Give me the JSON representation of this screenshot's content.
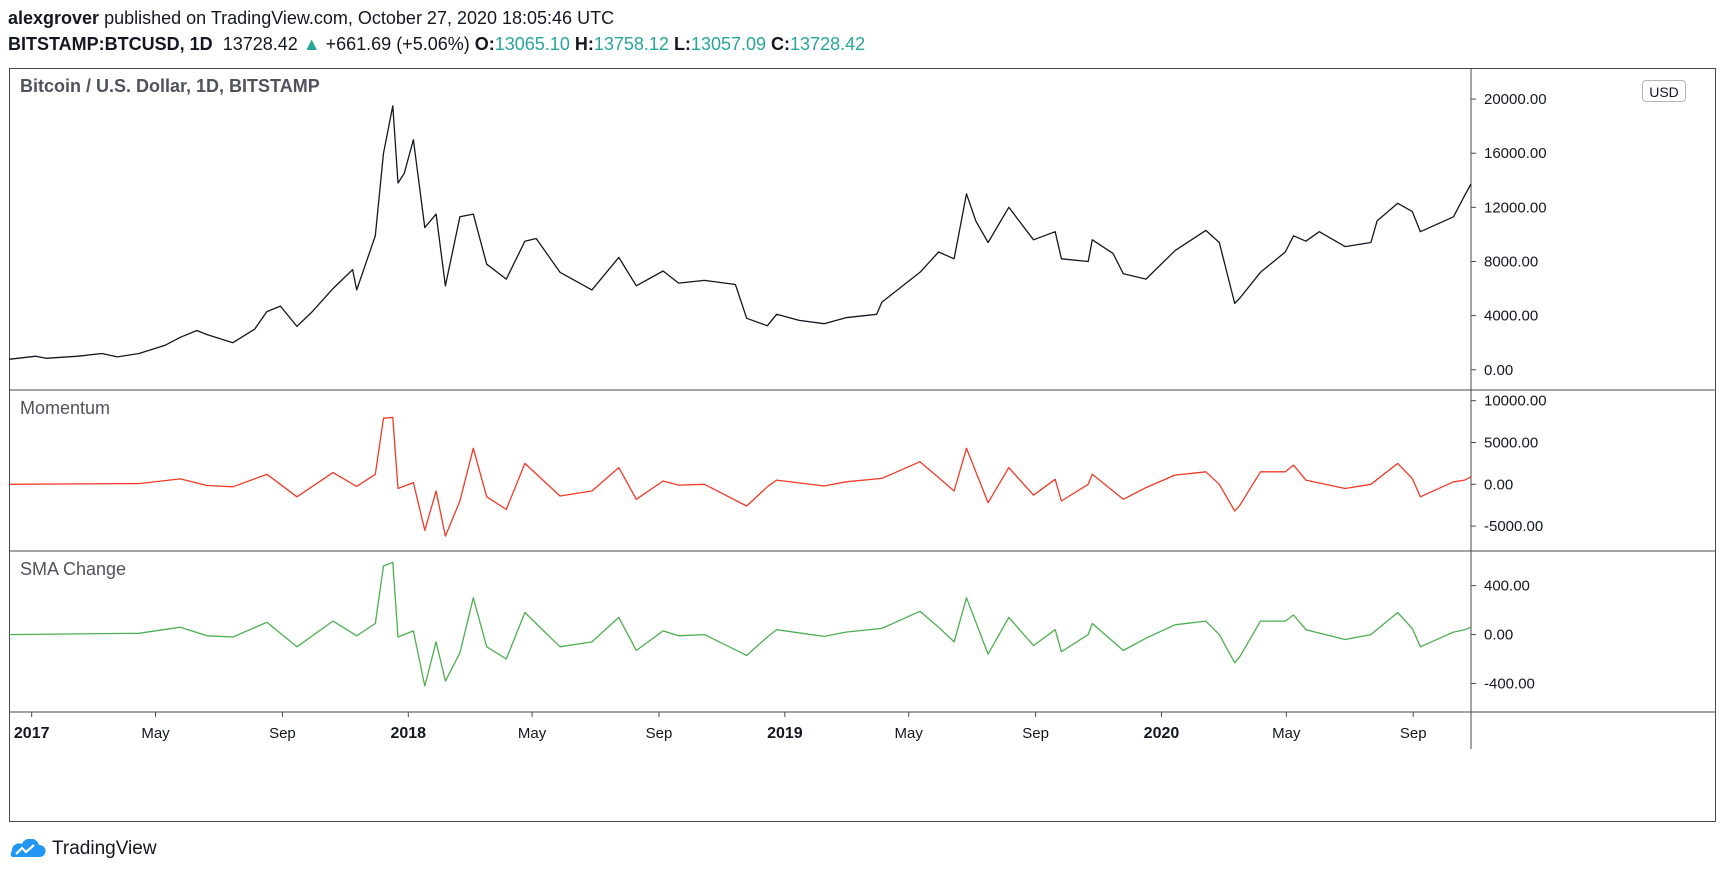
{
  "header": {
    "author": "alexgrover",
    "published_text": "published on TradingView.com, October 27, 2020 18:05:46 UTC",
    "symbol": "BITSTAMP:BTCUSD, 1D",
    "last": "13728.42",
    "change": "+661.69 (+5.06%)",
    "o_label": "O:",
    "o_value": "13065.10",
    "h_label": "H:",
    "h_value": "13758.12",
    "l_label": "L:",
    "l_value": "13057.09",
    "c_label": "C:",
    "c_value": "13728.42"
  },
  "currency_badge": "USD",
  "footer": {
    "brand": "TradingView"
  },
  "colors": {
    "price": "#131722",
    "momentum": "#f23a26",
    "sma_change": "#4caf50",
    "up": "#26a69a",
    "axis_border": "#4a4a4a"
  },
  "chart_data": {
    "type": "line",
    "x_ticks": [
      {
        "label": "2017",
        "year": true,
        "date": "2017-01-01"
      },
      {
        "label": "May",
        "year": false,
        "date": "2017-05-01"
      },
      {
        "label": "Sep",
        "year": false,
        "date": "2017-09-01"
      },
      {
        "label": "2018",
        "year": true,
        "date": "2018-01-01"
      },
      {
        "label": "May",
        "year": false,
        "date": "2018-05-01"
      },
      {
        "label": "Sep",
        "year": false,
        "date": "2018-09-01"
      },
      {
        "label": "2019",
        "year": true,
        "date": "2019-01-01"
      },
      {
        "label": "May",
        "year": false,
        "date": "2019-05-01"
      },
      {
        "label": "Sep",
        "year": false,
        "date": "2019-09-01"
      },
      {
        "label": "2020",
        "year": true,
        "date": "2020-01-01"
      },
      {
        "label": "May",
        "year": false,
        "date": "2020-05-01"
      },
      {
        "label": "Sep",
        "year": false,
        "date": "2020-09-01"
      }
    ],
    "x_range": [
      "2016-12-10",
      "2020-10-27"
    ],
    "panes": [
      {
        "name": "price",
        "title": "Bitcoin / U.S. Dollar, 1D, BITSTAMP",
        "ylim": [
          -1200,
          22000
        ],
        "y_ticks": [
          "20000.00",
          "16000.00",
          "12000.00",
          "8000.00",
          "4000.00",
          "0.00"
        ],
        "y_tick_values": [
          20000,
          16000,
          12000,
          8000,
          4000,
          0
        ],
        "series": {
          "name": "BTCUSD",
          "points": [
            [
              "2016-12-10",
              770
            ],
            [
              "2017-01-05",
              1000
            ],
            [
              "2017-01-15",
              850
            ],
            [
              "2017-02-15",
              1000
            ],
            [
              "2017-03-10",
              1200
            ],
            [
              "2017-03-25",
              950
            ],
            [
              "2017-04-15",
              1200
            ],
            [
              "2017-05-10",
              1800
            ],
            [
              "2017-05-25",
              2400
            ],
            [
              "2017-06-10",
              2900
            ],
            [
              "2017-06-20",
              2600
            ],
            [
              "2017-07-15",
              2000
            ],
            [
              "2017-08-05",
              3000
            ],
            [
              "2017-08-17",
              4300
            ],
            [
              "2017-08-30",
              4700
            ],
            [
              "2017-09-15",
              3200
            ],
            [
              "2017-09-30",
              4300
            ],
            [
              "2017-10-20",
              6000
            ],
            [
              "2017-11-08",
              7400
            ],
            [
              "2017-11-12",
              5900
            ],
            [
              "2017-11-30",
              9900
            ],
            [
              "2017-12-08",
              16000
            ],
            [
              "2017-12-17",
              19500
            ],
            [
              "2017-12-22",
              13800
            ],
            [
              "2017-12-28",
              14500
            ],
            [
              "2018-01-06",
              17000
            ],
            [
              "2018-01-17",
              10500
            ],
            [
              "2018-01-28",
              11500
            ],
            [
              "2018-02-06",
              6200
            ],
            [
              "2018-02-20",
              11300
            ],
            [
              "2018-03-05",
              11500
            ],
            [
              "2018-03-18",
              7800
            ],
            [
              "2018-04-06",
              6700
            ],
            [
              "2018-04-24",
              9500
            ],
            [
              "2018-05-05",
              9700
            ],
            [
              "2018-05-28",
              7200
            ],
            [
              "2018-06-28",
              5900
            ],
            [
              "2018-07-24",
              8300
            ],
            [
              "2018-08-10",
              6200
            ],
            [
              "2018-09-05",
              7300
            ],
            [
              "2018-09-20",
              6400
            ],
            [
              "2018-10-15",
              6600
            ],
            [
              "2018-11-14",
              6300
            ],
            [
              "2018-11-25",
              3800
            ],
            [
              "2018-12-15",
              3250
            ],
            [
              "2018-12-24",
              4100
            ],
            [
              "2019-01-15",
              3650
            ],
            [
              "2019-02-08",
              3400
            ],
            [
              "2019-03-01",
              3850
            ],
            [
              "2019-03-31",
              4100
            ],
            [
              "2019-04-05",
              5000
            ],
            [
              "2019-05-12",
              7200
            ],
            [
              "2019-05-30",
              8700
            ],
            [
              "2019-06-14",
              8200
            ],
            [
              "2019-06-26",
              13000
            ],
            [
              "2019-07-05",
              11000
            ],
            [
              "2019-07-17",
              9400
            ],
            [
              "2019-08-06",
              12000
            ],
            [
              "2019-08-30",
              9600
            ],
            [
              "2019-09-20",
              10200
            ],
            [
              "2019-09-26",
              8200
            ],
            [
              "2019-10-22",
              8000
            ],
            [
              "2019-10-26",
              9600
            ],
            [
              "2019-11-15",
              8600
            ],
            [
              "2019-11-25",
              7100
            ],
            [
              "2019-12-17",
              6700
            ],
            [
              "2020-01-14",
              8800
            ],
            [
              "2020-02-13",
              10300
            ],
            [
              "2020-02-26",
              9400
            ],
            [
              "2020-03-12",
              4900
            ],
            [
              "2020-03-17",
              5300
            ],
            [
              "2020-04-06",
              7200
            ],
            [
              "2020-04-30",
              8700
            ],
            [
              "2020-05-08",
              9900
            ],
            [
              "2020-05-20",
              9500
            ],
            [
              "2020-06-02",
              10200
            ],
            [
              "2020-06-27",
              9100
            ],
            [
              "2020-07-22",
              9400
            ],
            [
              "2020-07-28",
              11000
            ],
            [
              "2020-08-17",
              12300
            ],
            [
              "2020-08-31",
              11700
            ],
            [
              "2020-09-08",
              10200
            ],
            [
              "2020-10-10",
              11300
            ],
            [
              "2020-10-21",
              12900
            ],
            [
              "2020-10-27",
              13728
            ]
          ]
        }
      },
      {
        "name": "momentum",
        "title": "Momentum",
        "ylim": [
          -7500,
          10800
        ],
        "y_ticks": [
          "10000.00",
          "5000.00",
          "0.00",
          "-5000.00"
        ],
        "y_tick_values": [
          10000,
          5000,
          0,
          -5000
        ],
        "series": {
          "name": "Momentum",
          "points": [
            [
              "2016-12-10",
              0
            ],
            [
              "2017-02-15",
              50
            ],
            [
              "2017-04-15",
              80
            ],
            [
              "2017-05-25",
              650
            ],
            [
              "2017-06-20",
              -150
            ],
            [
              "2017-07-15",
              -300
            ],
            [
              "2017-08-17",
              1200
            ],
            [
              "2017-09-15",
              -1500
            ],
            [
              "2017-10-20",
              1400
            ],
            [
              "2017-11-12",
              -250
            ],
            [
              "2017-11-30",
              1200
            ],
            [
              "2017-12-08",
              7900
            ],
            [
              "2017-12-17",
              8000
            ],
            [
              "2017-12-22",
              -500
            ],
            [
              "2018-01-06",
              200
            ],
            [
              "2018-01-17",
              -5500
            ],
            [
              "2018-01-28",
              -800
            ],
            [
              "2018-02-06",
              -6200
            ],
            [
              "2018-02-20",
              -2000
            ],
            [
              "2018-03-05",
              4300
            ],
            [
              "2018-03-18",
              -1500
            ],
            [
              "2018-04-06",
              -3000
            ],
            [
              "2018-04-24",
              2500
            ],
            [
              "2018-05-28",
              -1400
            ],
            [
              "2018-06-28",
              -800
            ],
            [
              "2018-07-24",
              2000
            ],
            [
              "2018-08-10",
              -1800
            ],
            [
              "2018-09-05",
              400
            ],
            [
              "2018-09-20",
              -100
            ],
            [
              "2018-10-15",
              0
            ],
            [
              "2018-11-25",
              -2600
            ],
            [
              "2018-12-15",
              -300
            ],
            [
              "2018-12-24",
              500
            ],
            [
              "2019-02-08",
              -200
            ],
            [
              "2019-03-01",
              300
            ],
            [
              "2019-04-05",
              700
            ],
            [
              "2019-05-12",
              2700
            ],
            [
              "2019-05-30",
              800
            ],
            [
              "2019-06-14",
              -800
            ],
            [
              "2019-06-26",
              4300
            ],
            [
              "2019-07-17",
              -2200
            ],
            [
              "2019-08-06",
              2000
            ],
            [
              "2019-08-30",
              -1300
            ],
            [
              "2019-09-20",
              600
            ],
            [
              "2019-09-26",
              -2000
            ],
            [
              "2019-10-22",
              0
            ],
            [
              "2019-10-26",
              1200
            ],
            [
              "2019-11-25",
              -1800
            ],
            [
              "2019-12-17",
              -400
            ],
            [
              "2020-01-14",
              1100
            ],
            [
              "2020-02-13",
              1500
            ],
            [
              "2020-02-26",
              0
            ],
            [
              "2020-03-12",
              -3200
            ],
            [
              "2020-03-17",
              -2500
            ],
            [
              "2020-04-06",
              1500
            ],
            [
              "2020-04-30",
              1500
            ],
            [
              "2020-05-08",
              2300
            ],
            [
              "2020-05-20",
              500
            ],
            [
              "2020-06-27",
              -500
            ],
            [
              "2020-07-22",
              0
            ],
            [
              "2020-08-17",
              2500
            ],
            [
              "2020-08-31",
              700
            ],
            [
              "2020-09-08",
              -1500
            ],
            [
              "2020-10-10",
              300
            ],
            [
              "2020-10-21",
              500
            ],
            [
              "2020-10-27",
              900
            ]
          ]
        }
      },
      {
        "name": "sma_change",
        "title": "SMA Change",
        "ylim": [
          -600,
          650
        ],
        "y_ticks": [
          "400.00",
          "0.00",
          "-400.00"
        ],
        "y_tick_values": [
          400,
          0,
          -400
        ],
        "series": {
          "name": "SMA Change",
          "points": [
            [
              "2016-12-10",
              0
            ],
            [
              "2017-02-15",
              5
            ],
            [
              "2017-04-15",
              10
            ],
            [
              "2017-05-25",
              60
            ],
            [
              "2017-06-20",
              -10
            ],
            [
              "2017-07-15",
              -20
            ],
            [
              "2017-08-17",
              100
            ],
            [
              "2017-09-15",
              -100
            ],
            [
              "2017-10-20",
              110
            ],
            [
              "2017-11-12",
              -10
            ],
            [
              "2017-11-30",
              90
            ],
            [
              "2017-12-08",
              560
            ],
            [
              "2017-12-17",
              590
            ],
            [
              "2017-12-22",
              -20
            ],
            [
              "2018-01-06",
              30
            ],
            [
              "2018-01-17",
              -420
            ],
            [
              "2018-01-28",
              -60
            ],
            [
              "2018-02-06",
              -380
            ],
            [
              "2018-02-20",
              -150
            ],
            [
              "2018-03-05",
              300
            ],
            [
              "2018-03-18",
              -100
            ],
            [
              "2018-04-06",
              -200
            ],
            [
              "2018-04-24",
              180
            ],
            [
              "2018-05-28",
              -100
            ],
            [
              "2018-06-28",
              -60
            ],
            [
              "2018-07-24",
              140
            ],
            [
              "2018-08-10",
              -130
            ],
            [
              "2018-09-05",
              30
            ],
            [
              "2018-09-20",
              -10
            ],
            [
              "2018-10-15",
              0
            ],
            [
              "2018-11-25",
              -170
            ],
            [
              "2018-12-15",
              -20
            ],
            [
              "2018-12-24",
              40
            ],
            [
              "2019-02-08",
              -15
            ],
            [
              "2019-03-01",
              20
            ],
            [
              "2019-04-05",
              50
            ],
            [
              "2019-05-12",
              190
            ],
            [
              "2019-05-30",
              60
            ],
            [
              "2019-06-14",
              -60
            ],
            [
              "2019-06-26",
              300
            ],
            [
              "2019-07-17",
              -160
            ],
            [
              "2019-08-06",
              140
            ],
            [
              "2019-08-30",
              -90
            ],
            [
              "2019-09-20",
              40
            ],
            [
              "2019-09-26",
              -140
            ],
            [
              "2019-10-22",
              0
            ],
            [
              "2019-10-26",
              90
            ],
            [
              "2019-11-25",
              -130
            ],
            [
              "2019-12-17",
              -30
            ],
            [
              "2020-01-14",
              80
            ],
            [
              "2020-02-13",
              110
            ],
            [
              "2020-02-26",
              0
            ],
            [
              "2020-03-12",
              -230
            ],
            [
              "2020-03-17",
              -180
            ],
            [
              "2020-04-06",
              110
            ],
            [
              "2020-04-30",
              110
            ],
            [
              "2020-05-08",
              160
            ],
            [
              "2020-05-20",
              40
            ],
            [
              "2020-06-27",
              -40
            ],
            [
              "2020-07-22",
              0
            ],
            [
              "2020-08-17",
              180
            ],
            [
              "2020-08-31",
              50
            ],
            [
              "2020-09-08",
              -100
            ],
            [
              "2020-10-10",
              20
            ],
            [
              "2020-10-21",
              40
            ],
            [
              "2020-10-27",
              60
            ]
          ]
        }
      }
    ]
  }
}
